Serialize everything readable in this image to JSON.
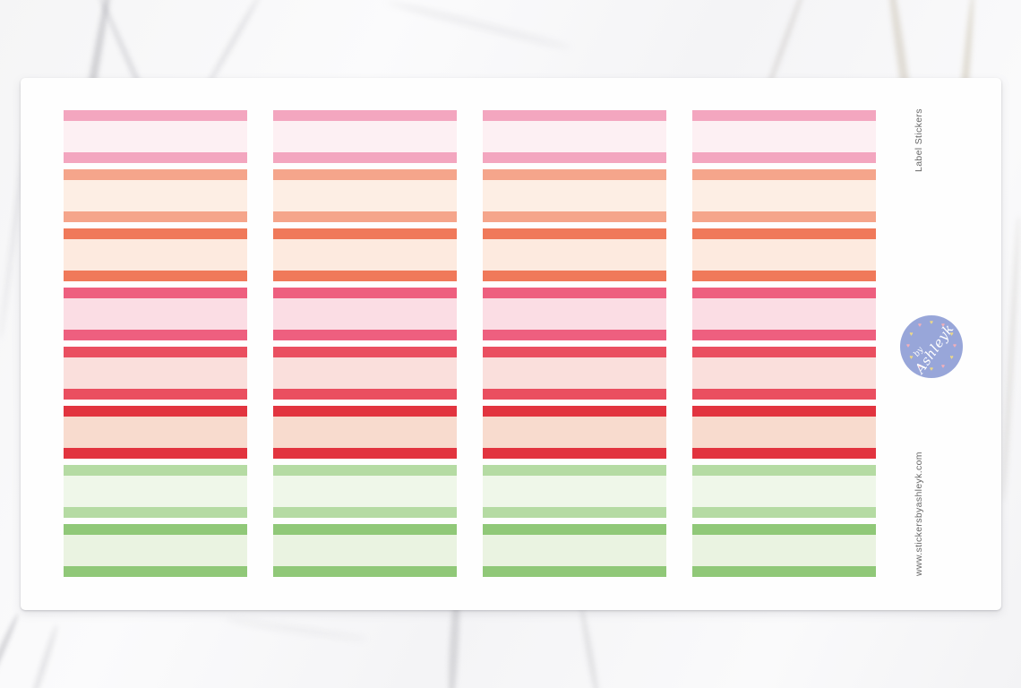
{
  "product_image": {
    "sheet": {
      "columns": 4,
      "stickers_per_column": 8,
      "stickers": [
        {
          "name": "pink",
          "border_color": "#f3a6bf",
          "fill_color": "#fdf0f3"
        },
        {
          "name": "peach",
          "border_color": "#f5a58b",
          "fill_color": "#fdeee4"
        },
        {
          "name": "coral",
          "border_color": "#f0795a",
          "fill_color": "#fdeadf"
        },
        {
          "name": "watermelon",
          "border_color": "#ee5f7f",
          "fill_color": "#fbdde4"
        },
        {
          "name": "rose-red",
          "border_color": "#ea4f60",
          "fill_color": "#fadfdc"
        },
        {
          "name": "red",
          "border_color": "#e2343f",
          "fill_color": "#f8dbce"
        },
        {
          "name": "light-green",
          "border_color": "#b5dba3",
          "fill_color": "#eff7e9"
        },
        {
          "name": "green",
          "border_color": "#90c878",
          "fill_color": "#eaf3e1"
        }
      ]
    },
    "annotations": {
      "product_title": "Label Stickers",
      "website": "www.stickersbyashleyk.com"
    },
    "logo": {
      "prefix": "by",
      "name": "Ashleyk",
      "circle_color": "#98a6d9",
      "text_color": "#ffffff",
      "hearts": [
        {
          "angle": 0,
          "color": "#ebd78a"
        },
        {
          "angle": 30,
          "color": "#f2afb9"
        },
        {
          "angle": 60,
          "color": "#ebd78a"
        },
        {
          "angle": 90,
          "color": "#f2afb9"
        },
        {
          "angle": 120,
          "color": "#ebd78a"
        },
        {
          "angle": 150,
          "color": "#f2afb9"
        },
        {
          "angle": 180,
          "color": "#ebd78a"
        },
        {
          "angle": 210,
          "color": "#f2afb9"
        },
        {
          "angle": 240,
          "color": "#ebd78a"
        },
        {
          "angle": 270,
          "color": "#f2afb9"
        },
        {
          "angle": 300,
          "color": "#ebd78a"
        },
        {
          "angle": 330,
          "color": "#f2afb9"
        }
      ]
    }
  }
}
